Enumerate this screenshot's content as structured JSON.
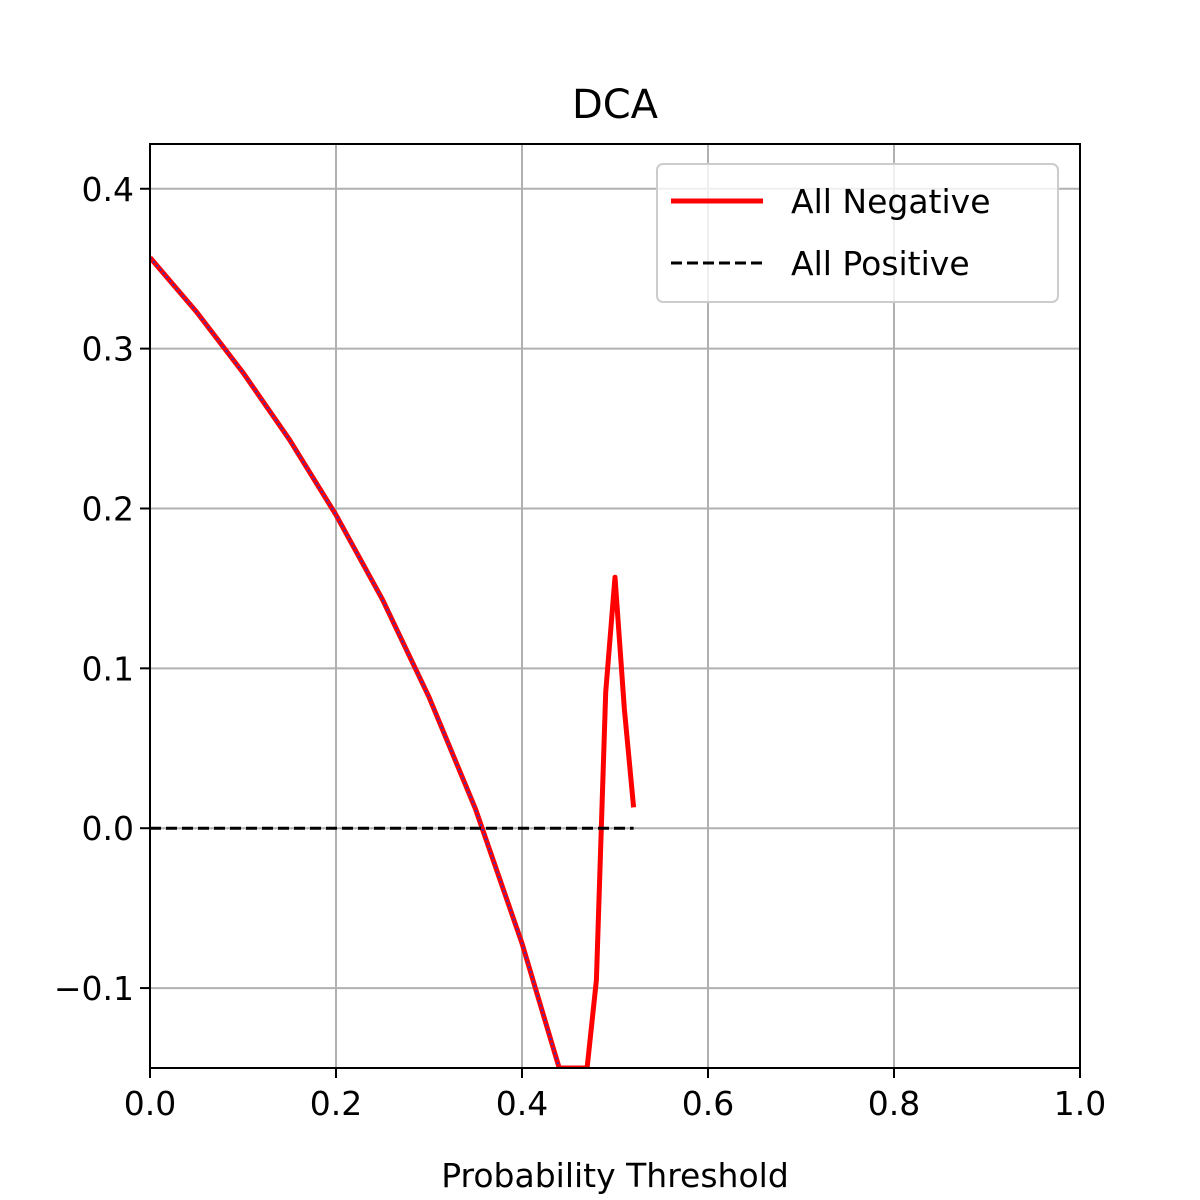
{
  "chart_data": {
    "type": "line",
    "title": "DCA",
    "xlabel": "Probability Threshold",
    "ylabel": "",
    "xlim": [
      0.0,
      1.0
    ],
    "ylim": [
      -0.15,
      0.428
    ],
    "x_ticks": [
      0.0,
      0.2,
      0.4,
      0.6,
      0.8,
      1.0
    ],
    "x_tick_labels": [
      "0.0",
      "0.2",
      "0.4",
      "0.6",
      "0.8",
      "1.0"
    ],
    "y_ticks": [
      -0.1,
      0.0,
      0.1,
      0.2,
      0.3,
      0.4
    ],
    "y_tick_labels": [
      "−0.1",
      "0.0",
      "0.1",
      "0.2",
      "0.3",
      "0.4"
    ],
    "grid": true,
    "legend_position": "upper right",
    "series": [
      {
        "name": "All Negative",
        "style": "solid",
        "color": "#ff0000",
        "x": [
          0.0,
          0.05,
          0.1,
          0.15,
          0.2,
          0.25,
          0.3,
          0.35,
          0.4,
          0.44,
          0.47,
          0.48,
          0.49,
          0.5,
          0.51,
          0.52
        ],
        "y": [
          0.357,
          0.323,
          0.285,
          0.243,
          0.196,
          0.143,
          0.082,
          0.012,
          -0.072,
          -0.15,
          -0.15,
          -0.095,
          0.085,
          0.157,
          0.075,
          0.013
        ]
      },
      {
        "name": "All Positive",
        "style": "dashed",
        "color": "#000000",
        "x": [
          0.0,
          0.52
        ],
        "y": [
          0.0,
          0.0
        ]
      }
    ],
    "overlay": {
      "style": "dotted",
      "color": "#3333cc",
      "x": [
        0.0,
        0.05,
        0.1,
        0.15,
        0.2,
        0.25,
        0.3,
        0.35,
        0.4,
        0.44
      ],
      "y": [
        0.357,
        0.323,
        0.285,
        0.243,
        0.196,
        0.143,
        0.082,
        0.012,
        -0.072,
        -0.15
      ]
    }
  }
}
